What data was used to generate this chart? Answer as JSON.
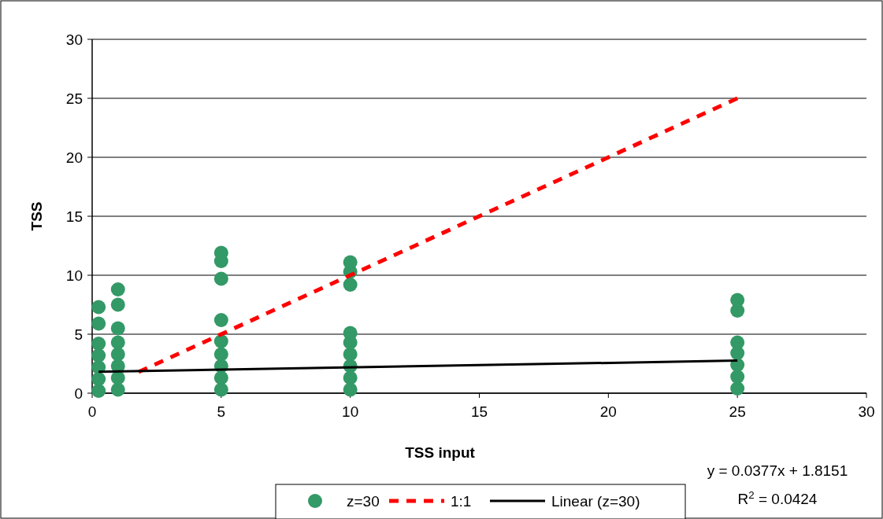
{
  "chart_data": {
    "type": "scatter",
    "xlabel": "TSS input",
    "ylabel": "TSS",
    "xlim": [
      0,
      30
    ],
    "xticks": [
      0,
      5,
      10,
      15,
      20,
      25,
      30
    ],
    "ylim": [
      0,
      30
    ],
    "yticks": [
      0,
      5,
      10,
      15,
      20,
      25,
      30
    ],
    "grid": "y",
    "legend": "bottom",
    "annotations": [
      "y = 0.0377x + 1.8151",
      "R$^{2}$ = 0.0424"
    ],
    "series": [
      {
        "name": "z=30",
        "color": "#339966",
        "marker": "circle",
        "x": [
          0.25,
          0.25,
          0.25,
          0.25,
          0.25,
          0.25,
          0.25,
          1,
          1,
          1,
          1,
          1,
          1,
          1,
          1,
          5,
          5,
          5,
          5,
          5,
          5,
          5,
          5,
          5,
          10,
          10,
          10,
          10,
          10,
          10,
          10,
          10,
          10,
          25,
          25,
          25,
          25,
          25,
          25,
          25
        ],
        "values": [
          0.2,
          1.2,
          2.2,
          3.2,
          4.2,
          5.9,
          7.3,
          0.3,
          1.3,
          2.3,
          3.3,
          4.3,
          5.5,
          7.5,
          8.8,
          0.3,
          1.3,
          2.3,
          3.3,
          4.4,
          6.2,
          9.7,
          11.2,
          11.9,
          0.3,
          1.3,
          2.3,
          3.3,
          4.3,
          5.1,
          9.2,
          10.3,
          11.1,
          0.4,
          1.4,
          2.4,
          3.4,
          4.3,
          7.0,
          7.9
        ]
      },
      {
        "name": "1:1",
        "type": "line",
        "color": "#ff0000",
        "line_style": "dashed",
        "x": [
          1.8,
          25
        ],
        "values": [
          1.8,
          25
        ]
      },
      {
        "name": "Linear (z=30)",
        "type": "line",
        "color": "#000000",
        "line_style": "solid",
        "x": [
          0.25,
          25
        ],
        "values": [
          1.82,
          2.76
        ]
      }
    ]
  }
}
